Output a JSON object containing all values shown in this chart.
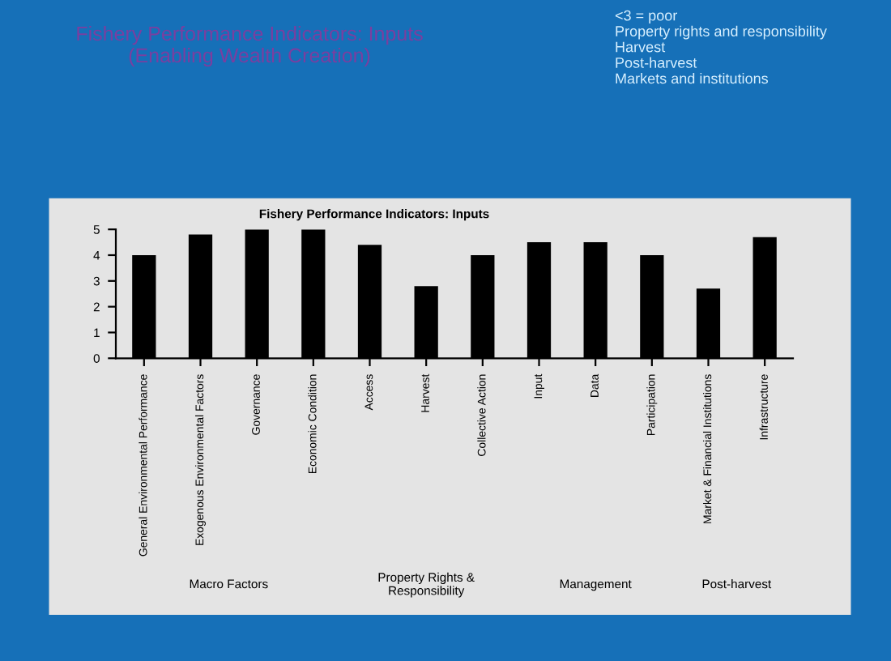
{
  "chart_data": {
    "type": "bar",
    "title": "Fishery Performance Indicators: Inputs\n(Enabling Wealth Creation)",
    "subtitle": "Fishery Performance Indicators: Inputs",
    "categories": [
      "General Environmental Performance",
      "Exogenous Environmental Factors",
      "Governance",
      "Economic Condition",
      "Access",
      "Harvest",
      "Collective Action",
      "Input",
      "Data",
      "Participation",
      "Market & Financial Institutions",
      "Infrastructure"
    ],
    "values": [
      4.0,
      4.8,
      5.0,
      5.0,
      4.4,
      2.8,
      4.0,
      4.5,
      4.5,
      4.0,
      2.7,
      4.7
    ],
    "color": "#000000",
    "ylim": [
      0,
      5
    ],
    "yticks": [
      0,
      1,
      2,
      3,
      4,
      5
    ],
    "grid": false,
    "annotations": [
      "Macro Factors",
      "Property Rights &\nResponsibility",
      "Management",
      "Post-harvest",
      "<3 = poor\nProperty rights and responsibility\nHarvest\nPost-harvest\nMarkets and institutions"
    ]
  }
}
